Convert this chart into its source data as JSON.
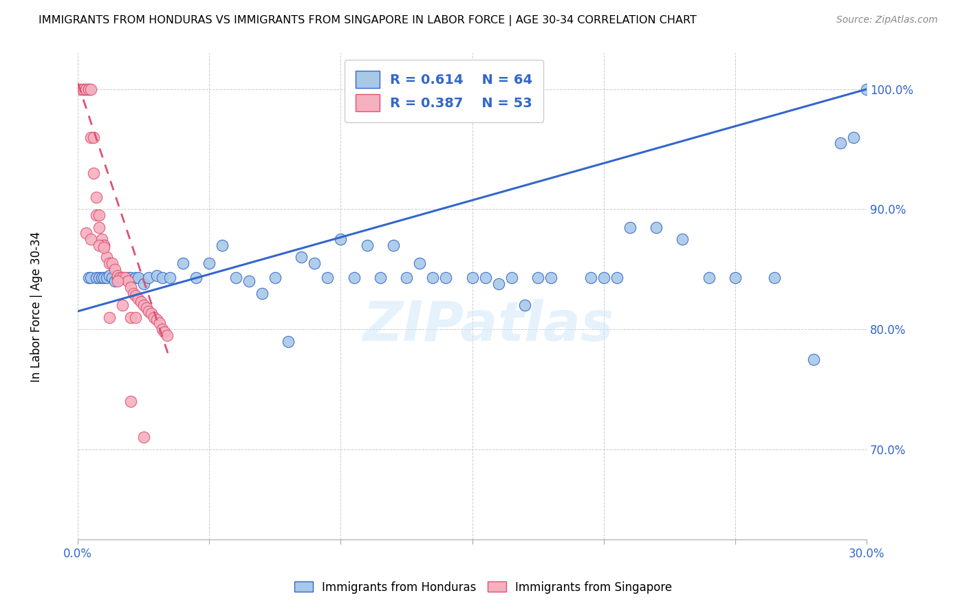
{
  "title": "IMMIGRANTS FROM HONDURAS VS IMMIGRANTS FROM SINGAPORE IN LABOR FORCE | AGE 30-34 CORRELATION CHART",
  "source": "Source: ZipAtlas.com",
  "ylabel": "In Labor Force | Age 30-34",
  "xlim": [
    0.0,
    0.3
  ],
  "ylim": [
    0.625,
    1.03
  ],
  "xticks": [
    0.0,
    0.05,
    0.1,
    0.15,
    0.2,
    0.25,
    0.3
  ],
  "yticks": [
    0.7,
    0.8,
    0.9,
    1.0
  ],
  "legend_r1": "R = 0.614",
  "legend_n1": "N = 64",
  "legend_r2": "R = 0.387",
  "legend_n2": "N = 53",
  "blue_color": "#a8c8e8",
  "pink_color": "#f5b0c0",
  "trend_blue": "#3366cc",
  "trend_pink": "#e05070",
  "watermark": "ZIPatlas",
  "blue_scatter_x": [
    0.004,
    0.005,
    0.007,
    0.008,
    0.009,
    0.01,
    0.011,
    0.012,
    0.013,
    0.014,
    0.015,
    0.016,
    0.017,
    0.018,
    0.019,
    0.02,
    0.022,
    0.023,
    0.025,
    0.027,
    0.03,
    0.032,
    0.035,
    0.04,
    0.045,
    0.05,
    0.055,
    0.06,
    0.065,
    0.07,
    0.075,
    0.08,
    0.085,
    0.09,
    0.095,
    0.1,
    0.105,
    0.11,
    0.115,
    0.12,
    0.125,
    0.13,
    0.135,
    0.14,
    0.15,
    0.155,
    0.16,
    0.165,
    0.17,
    0.175,
    0.18,
    0.195,
    0.2,
    0.205,
    0.21,
    0.22,
    0.23,
    0.24,
    0.25,
    0.265,
    0.28,
    0.29,
    0.295,
    0.3
  ],
  "blue_scatter_y": [
    0.843,
    0.843,
    0.843,
    0.843,
    0.843,
    0.843,
    0.843,
    0.845,
    0.843,
    0.84,
    0.843,
    0.843,
    0.843,
    0.843,
    0.843,
    0.843,
    0.843,
    0.843,
    0.838,
    0.843,
    0.845,
    0.843,
    0.843,
    0.855,
    0.843,
    0.855,
    0.87,
    0.843,
    0.84,
    0.83,
    0.843,
    0.79,
    0.86,
    0.855,
    0.843,
    0.875,
    0.843,
    0.87,
    0.843,
    0.87,
    0.843,
    0.855,
    0.843,
    0.843,
    0.843,
    0.843,
    0.838,
    0.843,
    0.82,
    0.843,
    0.843,
    0.843,
    0.843,
    0.843,
    0.885,
    0.885,
    0.875,
    0.843,
    0.843,
    0.843,
    0.775,
    0.955,
    0.96,
    1.0
  ],
  "pink_scatter_x": [
    0.001,
    0.002,
    0.002,
    0.003,
    0.003,
    0.004,
    0.004,
    0.005,
    0.005,
    0.006,
    0.006,
    0.007,
    0.007,
    0.008,
    0.008,
    0.009,
    0.01,
    0.01,
    0.011,
    0.012,
    0.013,
    0.014,
    0.015,
    0.016,
    0.017,
    0.018,
    0.019,
    0.02,
    0.021,
    0.022,
    0.023,
    0.024,
    0.025,
    0.026,
    0.027,
    0.028,
    0.029,
    0.03,
    0.031,
    0.032,
    0.033,
    0.034,
    0.015,
    0.017,
    0.02,
    0.022,
    0.003,
    0.005,
    0.008,
    0.01,
    0.012,
    0.02,
    0.025
  ],
  "pink_scatter_y": [
    1.0,
    1.0,
    1.0,
    1.0,
    1.0,
    1.0,
    1.0,
    1.0,
    0.96,
    0.96,
    0.93,
    0.91,
    0.895,
    0.895,
    0.885,
    0.875,
    0.87,
    0.87,
    0.86,
    0.855,
    0.855,
    0.85,
    0.845,
    0.843,
    0.843,
    0.843,
    0.84,
    0.835,
    0.83,
    0.828,
    0.825,
    0.823,
    0.82,
    0.818,
    0.815,
    0.813,
    0.81,
    0.808,
    0.805,
    0.8,
    0.798,
    0.795,
    0.84,
    0.82,
    0.81,
    0.81,
    0.88,
    0.875,
    0.87,
    0.868,
    0.81,
    0.74,
    0.71
  ],
  "blue_trend_x": [
    0.0,
    0.3
  ],
  "blue_trend_y": [
    0.815,
    1.0
  ],
  "pink_trend_x": [
    0.0,
    0.035
  ],
  "pink_trend_y": [
    1.005,
    0.775
  ]
}
